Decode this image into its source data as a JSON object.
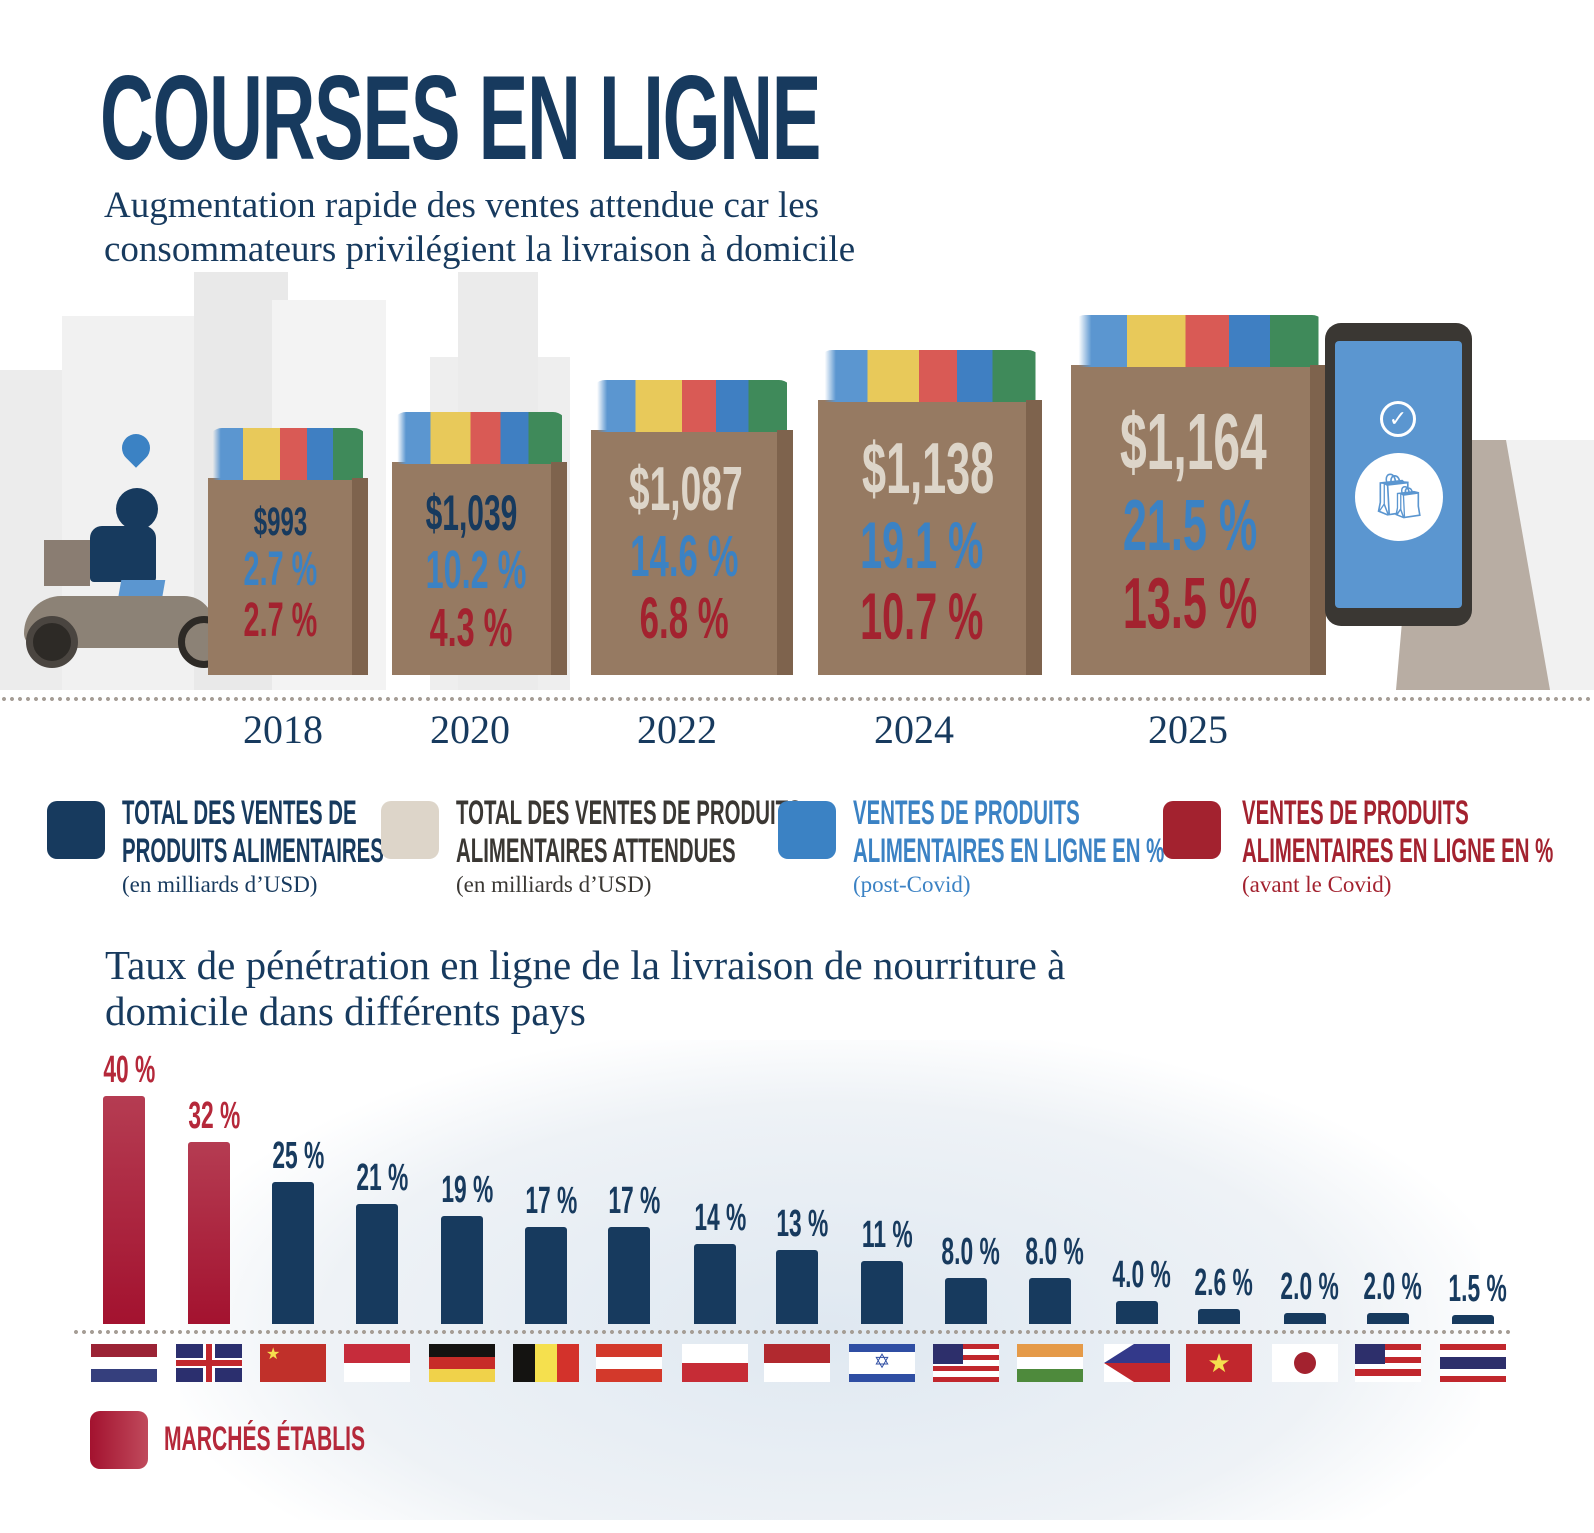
{
  "header": {
    "title": "COURSES EN LIGNE",
    "subtitle_line1": "Augmentation rapide des ventes attendue car les",
    "subtitle_line2": "consommateurs privilégient la livraison à domicile"
  },
  "colors": {
    "navy": "#173a5e",
    "beige": "#ddd5c9",
    "blue": "#3b82c4",
    "red": "#a3222f",
    "established": "#a3122f"
  },
  "bags": [
    {
      "year": "2018",
      "total": "$993",
      "online_post": "2.7 %",
      "online_pre": "2.7 %",
      "total_kind": "actual"
    },
    {
      "year": "2020",
      "total": "$1,039",
      "online_post": "10.2 %",
      "online_pre": "4.3 %",
      "total_kind": "actual"
    },
    {
      "year": "2022",
      "total": "$1,087",
      "online_post": "14.6 %",
      "online_pre": "6.8 %",
      "total_kind": "expected"
    },
    {
      "year": "2024",
      "total": "$1,138",
      "online_post": "19.1 %",
      "online_pre": "10.7 %",
      "total_kind": "expected"
    },
    {
      "year": "2025",
      "total": "$1,164",
      "online_post": "21.5 %",
      "online_pre": "13.5 %",
      "total_kind": "expected"
    }
  ],
  "legend": [
    {
      "line1": "TOTAL DES VENTES DE",
      "line2": "PRODUITS ALIMENTAIRES",
      "sub": "(en milliards d’USD)"
    },
    {
      "line1": "TOTAL DES VENTES DE PRODUITS",
      "line2": "ALIMENTAIRES ATTENDUES",
      "sub": "(en milliards d’USD)"
    },
    {
      "line1": "VENTES DE PRODUITS",
      "line2": "ALIMENTAIRES EN LIGNE EN %",
      "sub": "(post-Covid)"
    },
    {
      "line1": "VENTES DE PRODUITS",
      "line2": "ALIMENTAIRES EN LIGNE EN %",
      "sub": "(avant le Covid)"
    }
  ],
  "penetration": {
    "title_line1": "Taux de pénétration en ligne de la livraison de nourriture à",
    "title_line2": "domicile dans différents pays",
    "established_label": "MARCHÉS ÉTABLIS"
  },
  "chart_data": {
    "type": "bar",
    "title": "Taux de pénétration en ligne de la livraison de nourriture à domicile dans différents pays",
    "unit": "%",
    "ylim": [
      0,
      40
    ],
    "values": [
      40,
      32,
      25,
      21,
      19,
      17,
      17,
      14,
      13,
      11,
      8.0,
      8.0,
      4.0,
      2.6,
      2.0,
      2.0,
      1.5
    ],
    "labels": [
      "40 %",
      "32 %",
      "25 %",
      "21 %",
      "19 %",
      "17 %",
      "17 %",
      "14 %",
      "13 %",
      "11 %",
      "8.0 %",
      "8.0 %",
      "4.0 %",
      "2.6 %",
      "2.0 %",
      "2.0 %",
      "1.5 %"
    ],
    "established": [
      true,
      true,
      false,
      false,
      false,
      false,
      false,
      false,
      false,
      false,
      false,
      false,
      false,
      false,
      false,
      false,
      false
    ],
    "flags": [
      {
        "icon": "netherlands-flag",
        "dir": "column",
        "stripes": [
          "#9b2335",
          "#ffffff",
          "#353f7d"
        ]
      },
      {
        "icon": "united-kingdom-flag",
        "dir": "uk",
        "stripes": [
          "#2b2f6e",
          "#ffffff",
          "#c1272d"
        ]
      },
      {
        "icon": "china-flag",
        "dir": "column",
        "stripes": [
          "#c0302a"
        ]
      },
      {
        "icon": "singapore-flag",
        "dir": "column",
        "stripes": [
          "#c62c3b",
          "#ffffff"
        ]
      },
      {
        "icon": "germany-flag",
        "dir": "column",
        "stripes": [
          "#141311",
          "#c72c28",
          "#f0d24a"
        ]
      },
      {
        "icon": "belgium-flag",
        "dir": "row",
        "stripes": [
          "#141311",
          "#f5e04e",
          "#d3322b"
        ]
      },
      {
        "icon": "austria-flag",
        "dir": "column",
        "stripes": [
          "#d3392b",
          "#ffffff",
          "#d3392b"
        ]
      },
      {
        "icon": "poland-flag",
        "dir": "column",
        "stripes": [
          "#ffffff",
          "#c62c36"
        ]
      },
      {
        "icon": "indonesia-flag",
        "dir": "column",
        "stripes": [
          "#b1292f",
          "#ffffff"
        ]
      },
      {
        "icon": "israel-flag",
        "dir": "column",
        "stripes": [
          "#2f4ea3",
          "#ffffff",
          "#ffffff",
          "#ffffff",
          "#2f4ea3"
        ]
      },
      {
        "icon": "usa-flag",
        "dir": "column",
        "stripes": [
          "#c1272d",
          "#ffffff",
          "#c1272d",
          "#ffffff",
          "#c1272d",
          "#ffffff",
          "#c1272d"
        ]
      },
      {
        "icon": "india-flag",
        "dir": "column",
        "stripes": [
          "#e59a48",
          "#ffffff",
          "#4e8a3c"
        ]
      },
      {
        "icon": "philippines-flag",
        "dir": "column",
        "stripes": [
          "#33398a",
          "#c1272d"
        ]
      },
      {
        "icon": "vietnam-flag",
        "dir": "column",
        "stripes": [
          "#c1272d"
        ]
      },
      {
        "icon": "japan-flag",
        "dir": "column",
        "stripes": [
          "#ffffff"
        ]
      },
      {
        "icon": "malaysia-flag",
        "dir": "column",
        "stripes": [
          "#c1272d",
          "#ffffff",
          "#c1272d",
          "#ffffff",
          "#c1272d",
          "#ffffff"
        ]
      },
      {
        "icon": "thailand-flag",
        "dir": "column",
        "stripes": [
          "#c1272d",
          "#ffffff",
          "#2d2f6b",
          "#2d2f6b",
          "#ffffff",
          "#c1272d"
        ]
      }
    ]
  }
}
